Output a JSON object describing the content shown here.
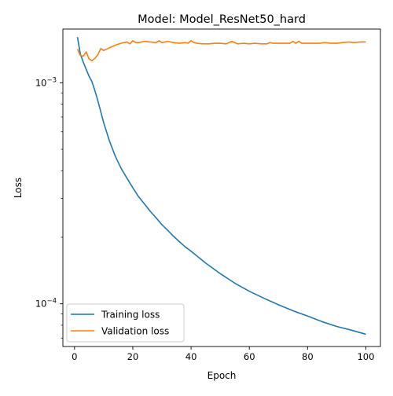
{
  "chart_data": {
    "type": "line",
    "title": "Model: Model_ResNet50_hard",
    "xlabel": "Epoch",
    "ylabel": "Loss",
    "xlim": [
      -4,
      105
    ],
    "ylim": [
      6.41e-05,
      0.00175
    ],
    "yscale": "log",
    "grid": false,
    "legend_position": "lower-left",
    "x_ticks": [
      0,
      20,
      40,
      60,
      80,
      100
    ],
    "x_tick_labels": [
      "0",
      "20",
      "40",
      "60",
      "80",
      "100"
    ],
    "y_ticks": [
      0.0001,
      0.001
    ],
    "y_tick_labels": [
      {
        "base": "10",
        "exp": "−4"
      },
      {
        "base": "10",
        "exp": "−3"
      }
    ],
    "series": [
      {
        "name": "Training loss",
        "color": "#1f77b4",
        "x": [
          1,
          2,
          3,
          4,
          5,
          6,
          7,
          8,
          9,
          10,
          12,
          14,
          16,
          18,
          20,
          22,
          24,
          26,
          28,
          30,
          32,
          34,
          36,
          38,
          40,
          45,
          50,
          55,
          60,
          65,
          70,
          75,
          80,
          85,
          90,
          95,
          100
        ],
        "y": [
          0.00161,
          0.00135,
          0.00124,
          0.00115,
          0.00107,
          0.00101,
          0.00092,
          0.00083,
          0.00074,
          0.00066,
          0.000545,
          0.000465,
          0.00041,
          0.00037,
          0.000335,
          0.000305,
          0.000283,
          0.000262,
          0.000245,
          0.000228,
          0.000215,
          0.000202,
          0.000191,
          0.000181,
          0.000173,
          0.000153,
          0.000137,
          0.000124,
          0.000114,
          0.000106,
          9.9e-05,
          9.3e-05,
          8.8e-05,
          8.3e-05,
          7.9e-05,
          7.6e-05,
          7.28e-05
        ]
      },
      {
        "name": "Validation loss",
        "color": "#ff7f0e",
        "x": [
          1,
          2,
          3,
          4,
          5,
          6,
          7,
          8,
          9,
          10,
          12,
          14,
          16,
          17,
          18,
          19,
          20,
          21,
          22,
          24,
          26,
          28,
          29,
          30,
          32,
          34,
          36,
          38,
          39,
          40,
          41,
          42,
          44,
          46,
          48,
          50,
          52,
          54,
          56,
          58,
          60,
          62,
          64,
          66,
          67,
          68,
          70,
          72,
          74,
          75,
          76,
          77,
          78,
          80,
          82,
          84,
          86,
          88,
          90,
          92,
          94,
          96,
          98,
          100
        ],
        "y": [
          0.00142,
          0.00133,
          0.00132,
          0.00138,
          0.00128,
          0.00126,
          0.00129,
          0.00134,
          0.00143,
          0.0014,
          0.00144,
          0.00148,
          0.00151,
          0.00152,
          0.00153,
          0.0015,
          0.00155,
          0.00152,
          0.00152,
          0.00154,
          0.00153,
          0.00152,
          0.00155,
          0.00152,
          0.00154,
          0.00152,
          0.00151,
          0.00152,
          0.00151,
          0.00155,
          0.00152,
          0.00151,
          0.0015,
          0.0015,
          0.00151,
          0.00151,
          0.0015,
          0.00154,
          0.0015,
          0.00151,
          0.0015,
          0.00151,
          0.0015,
          0.0015,
          0.00152,
          0.00151,
          0.00151,
          0.00151,
          0.00151,
          0.00154,
          0.00151,
          0.00154,
          0.00151,
          0.00151,
          0.00151,
          0.00151,
          0.00152,
          0.00151,
          0.00151,
          0.00152,
          0.00153,
          0.00152,
          0.00153,
          0.00153
        ]
      }
    ]
  }
}
